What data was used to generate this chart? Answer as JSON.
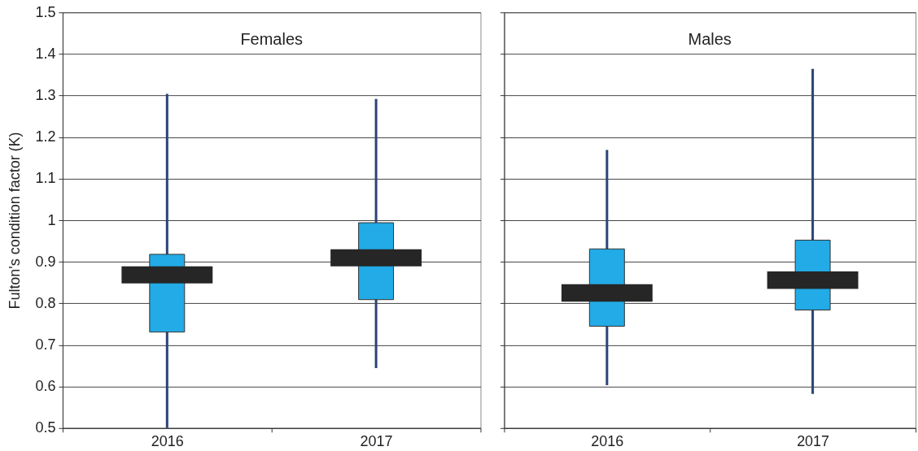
{
  "chart_data": [
    {
      "type": "box",
      "title": "Females",
      "ylabel": "Fulton's condition factor (K)",
      "categories": [
        "2016",
        "2017"
      ],
      "series": [
        {
          "color": "#22abe6",
          "boxes": [
            {
              "low": 0.5,
              "q1": 0.731,
              "q3": 0.918,
              "high": 1.304
            },
            {
              "low": 0.644,
              "q1": 0.809,
              "q3": 0.994,
              "high": 1.292
            }
          ]
        },
        {
          "type": "bar",
          "color": "#262626",
          "base": [
            0.848,
            0.889
          ],
          "values": [
            0.041,
            0.041
          ]
        }
      ],
      "ylim": [
        0.5,
        1.5
      ],
      "yticks": [
        0.5,
        0.6,
        0.7,
        0.8,
        0.9,
        1,
        1.1,
        1.2,
        1.3,
        1.4,
        1.5
      ],
      "grid": "y"
    },
    {
      "type": "box",
      "title": "Males",
      "categories": [
        "2016",
        "2017"
      ],
      "series": [
        {
          "color": "#22abe6",
          "boxes": [
            {
              "low": 0.603,
              "q1": 0.745,
              "q3": 0.931,
              "high": 1.169
            },
            {
              "low": 0.582,
              "q1": 0.784,
              "q3": 0.952,
              "high": 1.364
            }
          ]
        },
        {
          "type": "bar",
          "color": "#262626",
          "base": [
            0.804,
            0.835
          ],
          "values": [
            0.042,
            0.042
          ]
        }
      ],
      "ylim": [
        0.5,
        1.5
      ],
      "yticks": [
        0.5,
        0.6,
        0.7,
        0.8,
        0.9,
        1,
        1.1,
        1.2,
        1.3,
        1.4,
        1.5
      ],
      "grid": "y",
      "tick_labels": "x"
    }
  ]
}
